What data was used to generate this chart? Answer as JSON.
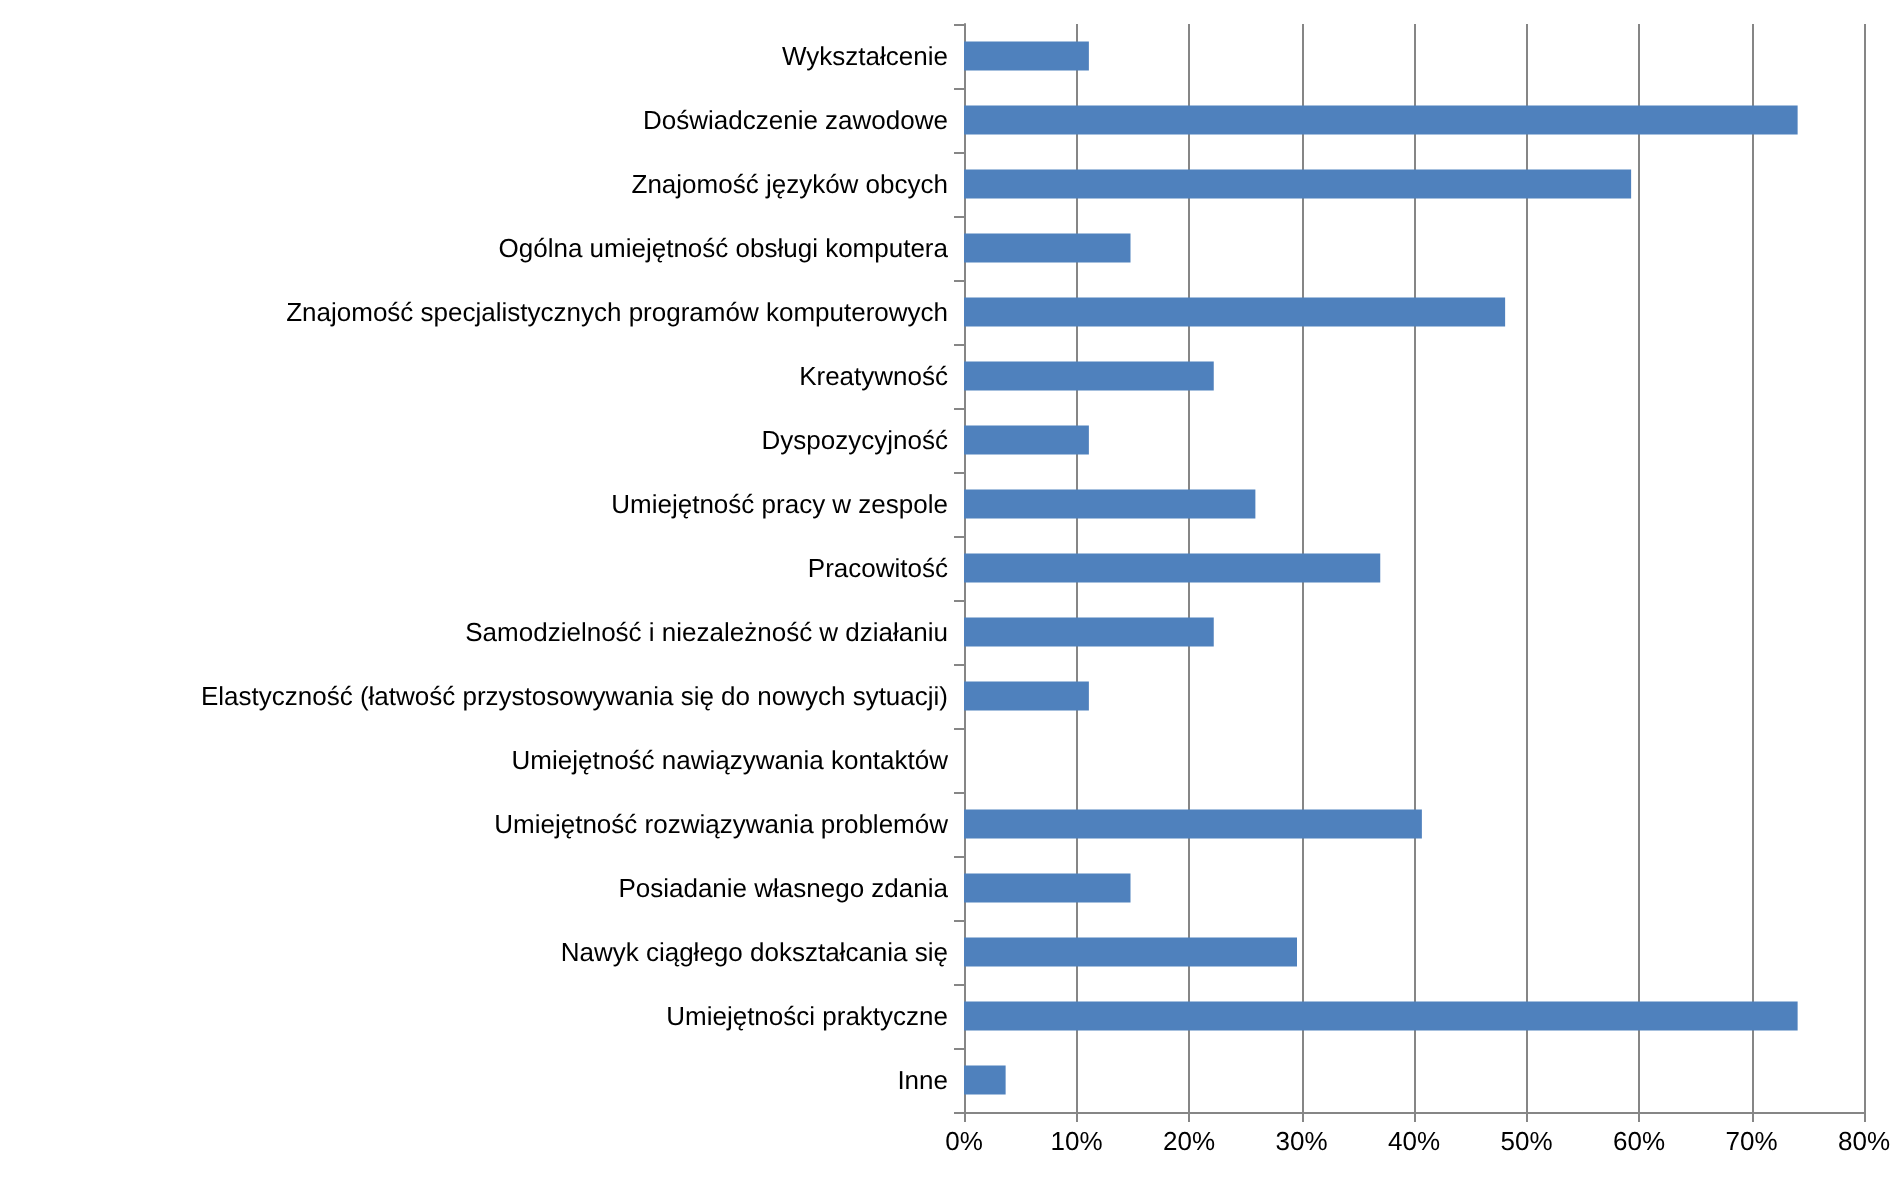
{
  "chart_data": {
    "type": "bar",
    "orientation": "horizontal",
    "categories": [
      "Wykształcenie",
      "Doświadczenie zawodowe",
      "Znajomość języków obcych",
      "Ogólna umiejętność obsługi komputera",
      "Znajomość specjalistycznych programów komputerowych",
      "Kreatywność",
      "Dyspozycyjność",
      "Umiejętność pracy w zespole",
      "Pracowitość",
      "Samodzielność i niezależność w działaniu",
      "Elastyczność (łatwość przystosowywania się do nowych sytuacji)",
      "Umiejętność nawiązywania kontaktów",
      "Umiejętność rozwiązywania problemów",
      "Posiadanie własnego zdania",
      "Nawyk ciągłego dokształcania się",
      "Umiejętności praktyczne",
      "Inne"
    ],
    "values": [
      11.1,
      74.1,
      59.3,
      14.8,
      48.1,
      22.2,
      11.1,
      25.9,
      37.0,
      22.2,
      11.1,
      0,
      40.7,
      14.8,
      29.6,
      74.1,
      3.7
    ],
    "color": "#4f81bd",
    "xlim": [
      0,
      80
    ],
    "xticks": [
      {
        "value": 0,
        "label": "0%"
      },
      {
        "value": 10,
        "label": "10%"
      },
      {
        "value": 20,
        "label": "20%"
      },
      {
        "value": 30,
        "label": "30%"
      },
      {
        "value": 40,
        "label": "40%"
      },
      {
        "value": 50,
        "label": "50%"
      },
      {
        "value": 60,
        "label": "60%"
      },
      {
        "value": 70,
        "label": "70%"
      },
      {
        "value": 80,
        "label": "80%"
      }
    ],
    "grid": "x"
  }
}
